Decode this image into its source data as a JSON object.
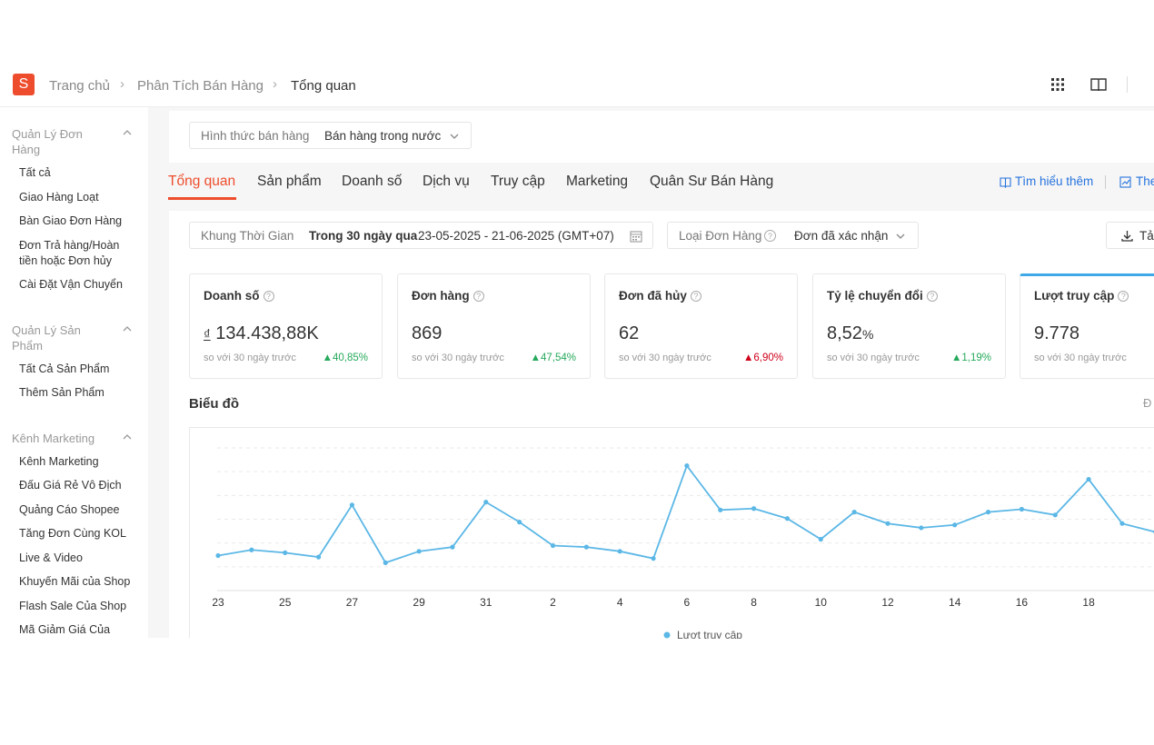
{
  "header": {
    "logo_letter": "S",
    "breadcrumb": [
      "Trang chủ",
      "Phân Tích Bán Hàng",
      "Tổng quan"
    ],
    "icons": [
      "grid-icon",
      "book-icon"
    ]
  },
  "sidebar": {
    "sections": [
      {
        "title": "Quản Lý Đơn Hàng",
        "items": [
          "Tất cả",
          "Giao Hàng Loạt",
          "Bàn Giao Đơn Hàng",
          "Đơn Trả hàng/Hoàn tiền hoặc Đơn hủy",
          "Cài Đặt Vận Chuyển"
        ]
      },
      {
        "title": "Quản Lý Sản Phẩm",
        "items": [
          "Tất Cả Sản Phẩm",
          "Thêm Sản Phẩm"
        ]
      },
      {
        "title": "Kênh Marketing",
        "items": [
          "Kênh Marketing",
          "Đấu Giá Rẻ Vô Địch",
          "Quảng Cáo Shopee",
          "Tăng Đơn Cùng KOL",
          "Live & Video",
          "Khuyến Mãi của Shop",
          "Flash Sale Của Shop",
          "Mã Giảm Giá Của"
        ]
      }
    ]
  },
  "filters": {
    "sales_type_label": "Hình thức bán hàng",
    "sales_type_value": "Bán hàng trong nước",
    "time_label": "Khung Thời Gian",
    "time_preset": "Trong 30 ngày qua",
    "time_range": "23-05-2025 - 21-06-2025 (GMT+07)",
    "order_type_label": "Loại Đơn Hàng",
    "order_type_value": "Đơn đã xác nhận",
    "export_label": "Tả"
  },
  "tabs": [
    "Tổng quan",
    "Sản phẩm",
    "Doanh số",
    "Dịch vụ",
    "Truy cập",
    "Marketing",
    "Quân Sư Bán Hàng"
  ],
  "links": {
    "learn_more": "Tìm hiểu thêm",
    "other": "The"
  },
  "kpis": [
    {
      "title": "Doanh số",
      "currency": "₫",
      "value": "134.438,88K",
      "compare": "so với 30 ngày trước",
      "change": "40,85%",
      "direction": "up"
    },
    {
      "title": "Đơn hàng",
      "value": "869",
      "compare": "so với 30 ngày trước",
      "change": "47,54%",
      "direction": "up"
    },
    {
      "title": "Đơn đã hủy",
      "value": "62",
      "compare": "so với 30 ngày trước",
      "change": "6,90%",
      "direction": "down"
    },
    {
      "title": "Tỷ lệ chuyển đổi",
      "value": "8,52",
      "unit": "%",
      "compare": "so với 30 ngày trước",
      "change": "1,19%",
      "direction": "up"
    },
    {
      "title": "Lượt truy cập",
      "value": "9.778",
      "compare": "so với 30 ngày trước",
      "change": "",
      "direction": ""
    }
  ],
  "chart_section_title": "Biểu đồ",
  "chart_section_right": "Đ",
  "chart_data": {
    "type": "line",
    "x": [
      "23",
      "24",
      "25",
      "26",
      "27",
      "28",
      "29",
      "30",
      "31",
      "1",
      "2",
      "3",
      "4",
      "5",
      "6",
      "7",
      "8",
      "9",
      "10",
      "11",
      "12",
      "13",
      "14",
      "15",
      "16",
      "17",
      "18",
      "19",
      "20"
    ],
    "tick_labels": [
      "23",
      "25",
      "27",
      "29",
      "31",
      "2",
      "4",
      "6",
      "8",
      "10",
      "12",
      "14",
      "16",
      "18"
    ],
    "series": [
      {
        "name": "Lượt truy cập",
        "color": "#5bb7e6",
        "values": [
          0.49,
          0.57,
          0.53,
          0.47,
          1.2,
          0.39,
          0.55,
          0.61,
          1.24,
          0.96,
          0.63,
          0.61,
          0.55,
          0.45,
          1.75,
          1.13,
          1.15,
          1.01,
          0.72,
          1.1,
          0.94,
          0.88,
          0.92,
          1.1,
          1.14,
          1.06,
          1.56,
          0.94,
          0.82
        ]
      }
    ],
    "ylim": [
      0,
      2
    ],
    "grid": true,
    "legend": "bottom"
  }
}
